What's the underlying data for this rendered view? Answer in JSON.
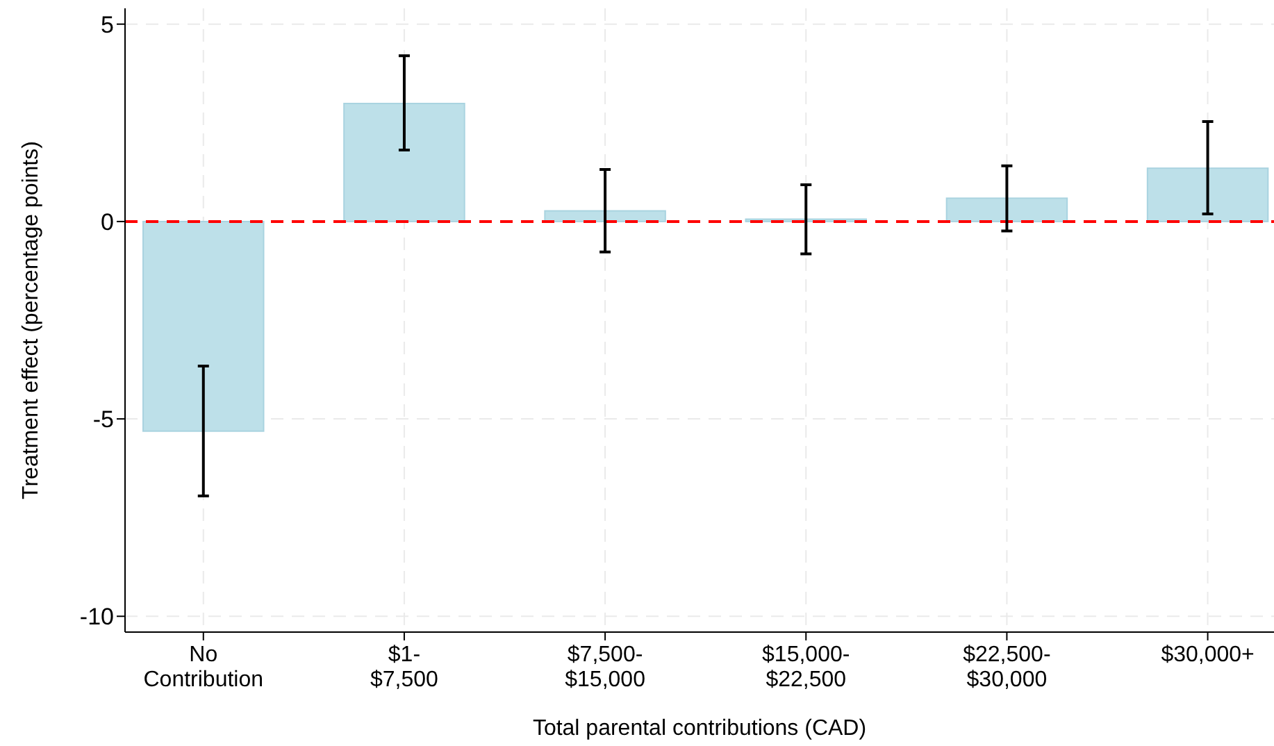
{
  "chart_data": {
    "type": "bar",
    "xlabel": "Total parental contributions (CAD)",
    "ylabel": "Treatment effect (percentage points)",
    "categories": [
      "No\nContribution",
      "$1-\n$7,500",
      "$7,500-\n$15,000",
      "$15,000-\n$22,500",
      "$22,500-\n$30,000",
      "$30,000+"
    ],
    "values": [
      -5.31,
      2.99,
      0.27,
      0.06,
      0.59,
      1.35
    ],
    "errors": [
      [
        -6.95,
        -3.66
      ],
      [
        1.81,
        4.2
      ],
      [
        -0.77,
        1.32
      ],
      [
        -0.82,
        0.93
      ],
      [
        -0.24,
        1.41
      ],
      [
        0.19,
        2.53
      ]
    ],
    "color": "#bde0e9",
    "ylim": [
      -10.4,
      5.4
    ],
    "yticks": [
      -10,
      -5,
      0,
      5
    ],
    "grid": true,
    "ref_lines": [
      {
        "axis": "y",
        "value": 0,
        "color": "#ff0000",
        "line_style": "dashed"
      }
    ]
  }
}
